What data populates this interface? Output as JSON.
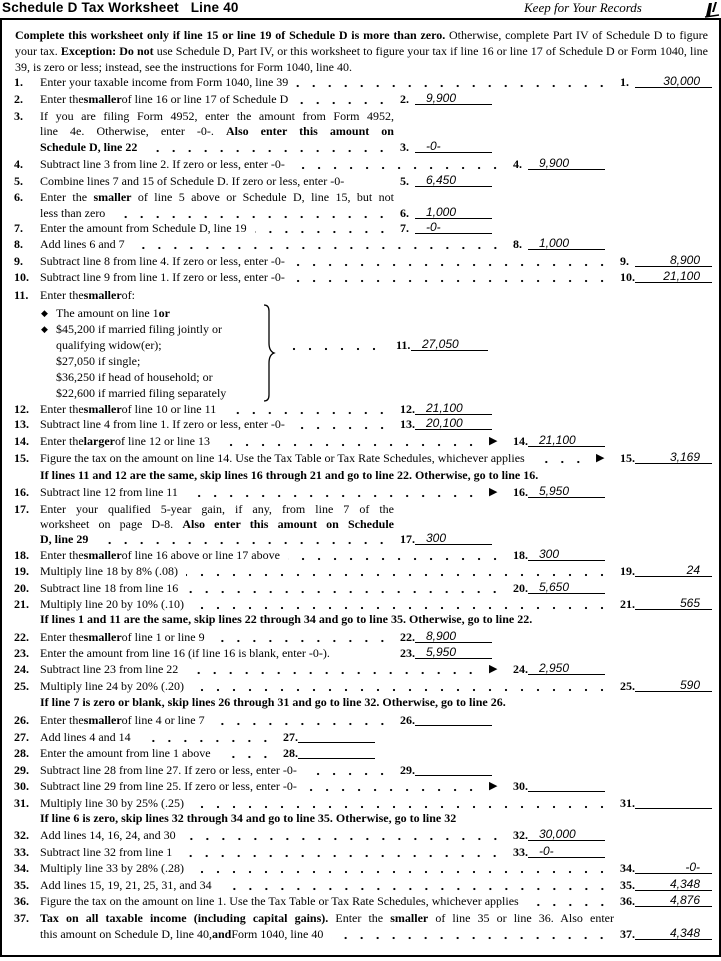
{
  "header": {
    "title": "Schedule D Tax Worksheet   Line 40",
    "keep": "Keep for Your Records",
    "icon": "pencil-icon"
  },
  "intro": [
    {
      "t": "Complete this worksheet only if line 15 or line 19 of Schedule D is more than zero.",
      "b": true
    },
    {
      "t": " Otherwise, complete Part IV of Schedule D to figure your tax. "
    },
    {
      "t": "Exception: Do not",
      "b": true
    },
    {
      "t": " use Schedule D, Part IV, or this worksheet to figure your tax if line 16 or line 17 of Schedule D or Form 1040, line 39, is zero or less; instead, see the instructions for Form 1040, line 40."
    }
  ],
  "rows": [
    {
      "num": "1.",
      "lines": [
        [
          {
            "t": "Enter your taxable income from Form 1040, line 39"
          }
        ]
      ],
      "value": "30,000"
    },
    {
      "num": "2.",
      "lines": [
        [
          {
            "t": "Enter the "
          },
          {
            "t": "smaller",
            "b": true
          },
          {
            "t": " of line 16 or line 17 of Schedule D"
          }
        ]
      ],
      "value": "9,900"
    },
    {
      "num": "3.",
      "lines": [
        [
          {
            "t": "If you are filing Form 4952, enter the amount from Form 4952,"
          }
        ],
        [
          {
            "t": "line 4e. Otherwise, enter -0-. "
          },
          {
            "t": "Also enter this amount on",
            "b": true
          }
        ],
        [
          {
            "t": "Schedule D, line 22",
            "b": true
          }
        ]
      ],
      "value": "-0-"
    },
    {
      "num": "4.",
      "lines": [
        [
          {
            "t": "Subtract line 3 from line 2. If zero or less, enter -0-"
          }
        ]
      ],
      "value": "9,900"
    },
    {
      "num": "5.",
      "lines": [
        [
          {
            "t": "Combine lines 7 and 15 of Schedule D. If zero or less, enter -0-"
          }
        ]
      ],
      "value": "6,450"
    },
    {
      "num": "6.",
      "lines": [
        [
          {
            "t": "Enter the "
          },
          {
            "t": "smaller",
            "b": true
          },
          {
            "t": " of line 5 above or Schedule D, line 15, but not"
          }
        ],
        [
          {
            "t": "less than zero"
          }
        ]
      ],
      "value": "1,000"
    },
    {
      "num": "7.",
      "lines": [
        [
          {
            "t": "Enter the amount from Schedule D, line 19"
          }
        ]
      ],
      "value": "-0-"
    },
    {
      "num": "8.",
      "lines": [
        [
          {
            "t": "Add lines 6 and 7"
          }
        ]
      ],
      "value": "1,000"
    },
    {
      "num": "9.",
      "lines": [
        [
          {
            "t": "Subtract line 8 from line 4. If zero or less, enter -0-"
          }
        ]
      ],
      "value": "8,900"
    },
    {
      "num": "10.",
      "lines": [
        [
          {
            "t": "Subtract line 9 from line 1. If zero or less, enter -0-"
          }
        ]
      ],
      "value": "21,100"
    },
    {
      "num": "11.",
      "lines": [
        [
          {
            "t": "Enter the "
          },
          {
            "t": "smaller",
            "b": true
          },
          {
            "t": " of:"
          }
        ]
      ],
      "bullets": [
        [
          [
            {
              "t": "The amount on line 1 "
            },
            {
              "t": "or",
              "b": true
            }
          ]
        ],
        [
          [
            {
              "t": "$45,200 if married filing jointly or"
            }
          ],
          [
            {
              "t": "qualifying widow(er);"
            }
          ],
          [
            {
              "t": "$27,050 if single;"
            }
          ],
          [
            {
              "t": "$36,250 if head of household; or"
            }
          ],
          [
            {
              "t": "$22,600 if married filing separately"
            }
          ]
        ]
      ],
      "value": "27,050"
    },
    {
      "num": "12.",
      "lines": [
        [
          {
            "t": "Enter the "
          },
          {
            "t": "smaller",
            "b": true
          },
          {
            "t": " of line 10 or line 11"
          }
        ]
      ],
      "value": "21,100"
    },
    {
      "num": "13.",
      "lines": [
        [
          {
            "t": "Subtract line 4 from line 1. If zero or less, enter -0-"
          }
        ]
      ],
      "value": "20,100"
    },
    {
      "num": "14.",
      "lines": [
        [
          {
            "t": "Enter the "
          },
          {
            "t": "larger",
            "b": true
          },
          {
            "t": " of line 12 or line 13"
          }
        ]
      ],
      "value": "21,100",
      "arrow": true
    },
    {
      "num": "15.",
      "lines": [
        [
          {
            "t": "Figure the tax on the amount on line 14. Use the Tax Table or Tax Rate Schedules, whichever applies"
          }
        ]
      ],
      "value": "3,169",
      "arrow": true
    },
    {
      "note": "If lines 11 and 12 are the same, skip lines 16 through 21 and go to line 22. Otherwise, go to line 16."
    },
    {
      "num": "16.",
      "lines": [
        [
          {
            "t": "Subtract line 12 from line 11"
          }
        ]
      ],
      "value": "5,950",
      "arrow": true
    },
    {
      "num": "17.",
      "lines": [
        [
          {
            "t": "Enter your qualified 5-year gain, if any, from line 7 of the"
          }
        ],
        [
          {
            "t": "worksheet on page D-8. "
          },
          {
            "t": "Also enter this amount on Schedule",
            "b": true
          }
        ],
        [
          {
            "t": "D, line 29",
            "b": true
          }
        ]
      ],
      "value": "300"
    },
    {
      "num": "18.",
      "lines": [
        [
          {
            "t": "Enter the "
          },
          {
            "t": "smaller",
            "b": true
          },
          {
            "t": " of line 16 above or line 17 above"
          }
        ]
      ],
      "value": "300"
    },
    {
      "num": "19.",
      "lines": [
        [
          {
            "t": "Multiply line 18 by 8% (.08)"
          }
        ]
      ],
      "value": "24"
    },
    {
      "num": "20.",
      "lines": [
        [
          {
            "t": "Subtract line 18 from line 16"
          }
        ]
      ],
      "value": "5,650"
    },
    {
      "num": "21.",
      "lines": [
        [
          {
            "t": "Multiply line 20 by 10% (.10)"
          }
        ]
      ],
      "value": "565"
    },
    {
      "note": "If lines 1 and 11 are the same, skip lines 22 through 34 and go to line 35. Otherwise, go to line 22."
    },
    {
      "num": "22.",
      "lines": [
        [
          {
            "t": "Enter the "
          },
          {
            "t": "smaller",
            "b": true
          },
          {
            "t": " of line 1 or line 9"
          }
        ]
      ],
      "value": "8,900"
    },
    {
      "num": "23.",
      "lines": [
        [
          {
            "t": "Enter the amount from line 16 (if line 16 is blank, enter -0-)."
          }
        ]
      ],
      "value": "5,950"
    },
    {
      "num": "24.",
      "lines": [
        [
          {
            "t": "Subtract line 23 from line 22"
          }
        ]
      ],
      "value": "2,950",
      "arrow": true
    },
    {
      "num": "25.",
      "lines": [
        [
          {
            "t": "Multiply line 24 by 20% (.20)"
          }
        ]
      ],
      "value": "590"
    },
    {
      "note": "If line 7 is zero or blank, skip lines 26 through 31 and go to line 32. Otherwise, go to line 26."
    },
    {
      "num": "26.",
      "lines": [
        [
          {
            "t": "Enter the "
          },
          {
            "t": "smaller",
            "b": true
          },
          {
            "t": " of line 4 or line 7"
          }
        ]
      ],
      "value": ""
    },
    {
      "num": "27.",
      "lines": [
        [
          {
            "t": "Add lines 4 and 14"
          }
        ]
      ],
      "value": ""
    },
    {
      "num": "28.",
      "lines": [
        [
          {
            "t": "Enter the amount from line 1 above"
          }
        ]
      ],
      "value": ""
    },
    {
      "num": "29.",
      "lines": [
        [
          {
            "t": "Subtract line 28 from line 27. If zero or less, enter -0-"
          }
        ]
      ],
      "value": ""
    },
    {
      "num": "30.",
      "lines": [
        [
          {
            "t": "Subtract line 29 from line 25. If zero or less, enter -0-"
          }
        ]
      ],
      "value": "",
      "arrow": true
    },
    {
      "num": "31.",
      "lines": [
        [
          {
            "t": "Multiply line 30 by 25% (.25)"
          }
        ]
      ],
      "value": ""
    },
    {
      "note": "If line 6 is zero, skip lines 32 through 34 and go to line 35. Otherwise, go to line 32"
    },
    {
      "num": "32.",
      "lines": [
        [
          {
            "t": "Add lines 14, 16, 24, and 30"
          }
        ]
      ],
      "value": "30,000"
    },
    {
      "num": "33.",
      "lines": [
        [
          {
            "t": "Subtract line 32 from line 1"
          }
        ]
      ],
      "value": "-0-"
    },
    {
      "num": "34.",
      "lines": [
        [
          {
            "t": "Multiply line 33 by 28% (.28)"
          }
        ]
      ],
      "value": "-0-"
    },
    {
      "num": "35.",
      "lines": [
        [
          {
            "t": "Add lines 15, 19, 21, 25, 31, and 34"
          }
        ]
      ],
      "value": "4,348"
    },
    {
      "num": "36.",
      "lines": [
        [
          {
            "t": "Figure the tax on the amount on line 1. Use the Tax Table or Tax Rate Schedules, whichever applies"
          }
        ]
      ],
      "value": "4,876"
    },
    {
      "num": "37.",
      "lines": [
        [
          {
            "t": "Tax on all taxable income (including capital gains).",
            "b": true
          },
          {
            "t": " Enter the "
          },
          {
            "t": "smaller",
            "b": true
          },
          {
            "t": " of line 35 or line 36. Also enter"
          }
        ],
        [
          {
            "t": "this amount on Schedule D, line 40, "
          },
          {
            "t": "and",
            "b": true
          },
          {
            "t": " Form 1040, line 40"
          }
        ]
      ],
      "value": "4,348"
    }
  ]
}
